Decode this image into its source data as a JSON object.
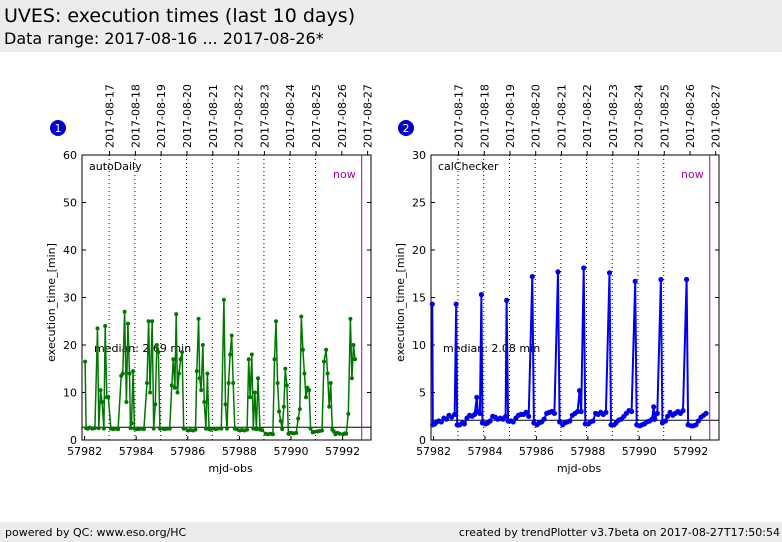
{
  "header": {
    "title": "UVES: execution times (last 10 days)",
    "subtitle": "Data range: 2017-08-16 ... 2017-08-26*"
  },
  "footer": {
    "left": "powered by QC: www.eso.org/HC",
    "right": "created by trendPlotter v3.7beta on 2017-08-27T17:50:54"
  },
  "chart_data": [
    {
      "type": "line",
      "badge": "1",
      "label": "autoDaily",
      "color": "#007700",
      "xlabel": "mjd-obs",
      "ylabel": "execution_time_[min]",
      "xlim": [
        57981.9,
        57993.1
      ],
      "ylim": [
        0,
        60
      ],
      "xticks": [
        57982,
        57984,
        57986,
        57988,
        57990,
        57992
      ],
      "yticks": [
        0,
        10,
        20,
        30,
        40,
        50,
        60
      ],
      "date_ticks": [
        "2017-08-17",
        "2017-08-18",
        "2017-08-19",
        "2017-08-20",
        "2017-08-21",
        "2017-08-22",
        "2017-08-23",
        "2017-08-24",
        "2017-08-25",
        "2017-08-26",
        "2017-08-27"
      ],
      "date_tick_mjd": [
        57982.0,
        57983.0,
        57984.0,
        57985.0,
        57986.0,
        57987.0,
        57988.0,
        57989.0,
        57990.0,
        57991.0,
        57992.0
      ],
      "day_boundaries": [
        57982.95,
        57983.95,
        57984.95,
        57985.95,
        57986.95,
        57987.95,
        57988.95,
        57989.95,
        57990.95
      ],
      "median": 2.69,
      "median_text": "median: 2.69 min",
      "now_mjd": 57992.74,
      "now_label": "now",
      "points": [
        [
          57982.02,
          16.5
        ],
        [
          57982.06,
          2.5
        ],
        [
          57982.12,
          2.4
        ],
        [
          57982.2,
          2.6
        ],
        [
          57982.3,
          2.4
        ],
        [
          57982.4,
          2.5
        ],
        [
          57982.5,
          23.5
        ],
        [
          57982.55,
          2.5
        ],
        [
          57982.62,
          10.5
        ],
        [
          57982.68,
          8.0
        ],
        [
          57982.75,
          2.4
        ],
        [
          57982.8,
          24.0
        ],
        [
          57982.86,
          9.0
        ],
        [
          57982.92,
          9.0
        ],
        [
          57983.02,
          2.4
        ],
        [
          57983.1,
          2.3
        ],
        [
          57983.2,
          2.4
        ],
        [
          57983.3,
          2.3
        ],
        [
          57983.42,
          13.5
        ],
        [
          57983.48,
          14.0
        ],
        [
          57983.55,
          27.0
        ],
        [
          57983.62,
          8.0
        ],
        [
          57983.68,
          24.5
        ],
        [
          57983.74,
          14.0
        ],
        [
          57983.78,
          2.5
        ],
        [
          57983.82,
          3.5
        ],
        [
          57983.88,
          14.5
        ],
        [
          57983.93,
          2.4
        ],
        [
          57984.02,
          2.3
        ],
        [
          57984.1,
          2.3
        ],
        [
          57984.2,
          2.4
        ],
        [
          57984.3,
          2.3
        ],
        [
          57984.42,
          12.0
        ],
        [
          57984.48,
          25.0
        ],
        [
          57984.54,
          10.0
        ],
        [
          57984.62,
          25.0
        ],
        [
          57984.68,
          2.4
        ],
        [
          57984.74,
          7.5
        ],
        [
          57984.8,
          20.0
        ],
        [
          57984.86,
          18.5
        ],
        [
          57984.92,
          2.4
        ],
        [
          57985.02,
          2.4
        ],
        [
          57985.1,
          2.3
        ],
        [
          57985.2,
          2.4
        ],
        [
          57985.3,
          2.4
        ],
        [
          57985.38,
          11.5
        ],
        [
          57985.44,
          17.0
        ],
        [
          57985.5,
          11.0
        ],
        [
          57985.55,
          26.5
        ],
        [
          57985.6,
          10.0
        ],
        [
          57985.66,
          14.0
        ],
        [
          57985.72,
          17.0
        ],
        [
          57985.78,
          18.5
        ],
        [
          57985.84,
          2.4
        ],
        [
          57985.9,
          2.4
        ],
        [
          57986.02,
          2.0
        ],
        [
          57986.1,
          2.1
        ],
        [
          57986.2,
          2.0
        ],
        [
          57986.3,
          2.2
        ],
        [
          57986.35,
          14.5
        ],
        [
          57986.42,
          25.5
        ],
        [
          57986.46,
          13.0
        ],
        [
          57986.52,
          10.5
        ],
        [
          57986.58,
          20.0
        ],
        [
          57986.64,
          8.0
        ],
        [
          57986.7,
          2.4
        ],
        [
          57986.76,
          14.0
        ],
        [
          57986.82,
          2.3
        ],
        [
          57986.88,
          2.2
        ],
        [
          57987.02,
          2.4
        ],
        [
          57987.08,
          2.3
        ],
        [
          57987.16,
          2.4
        ],
        [
          57987.3,
          2.4
        ],
        [
          57987.4,
          29.5
        ],
        [
          57987.46,
          7.5
        ],
        [
          57987.52,
          2.4
        ],
        [
          57987.58,
          12.0
        ],
        [
          57987.64,
          18.0
        ],
        [
          57987.7,
          22.0
        ],
        [
          57987.76,
          12.0
        ],
        [
          57987.82,
          2.4
        ],
        [
          57987.9,
          2.3
        ],
        [
          57988.02,
          2.0
        ],
        [
          57988.1,
          2.1
        ],
        [
          57988.2,
          2.0
        ],
        [
          57988.3,
          2.2
        ],
        [
          57988.36,
          17.0
        ],
        [
          57988.42,
          9.0
        ],
        [
          57988.48,
          18.0
        ],
        [
          57988.54,
          2.4
        ],
        [
          57988.6,
          10.0
        ],
        [
          57988.66,
          2.3
        ],
        [
          57988.72,
          13.0
        ],
        [
          57988.8,
          2.2
        ],
        [
          57988.88,
          2.1
        ],
        [
          57989.02,
          1.3
        ],
        [
          57989.1,
          1.2
        ],
        [
          57989.2,
          1.3
        ],
        [
          57989.3,
          1.2
        ],
        [
          57989.36,
          17.0
        ],
        [
          57989.42,
          25.0
        ],
        [
          57989.48,
          12.0
        ],
        [
          57989.54,
          6.0
        ],
        [
          57989.6,
          4.0
        ],
        [
          57989.66,
          2.3
        ],
        [
          57989.72,
          7.0
        ],
        [
          57989.78,
          15.0
        ],
        [
          57989.84,
          11.5
        ],
        [
          57989.9,
          1.3
        ],
        [
          57990.02,
          1.5
        ],
        [
          57990.1,
          1.4
        ],
        [
          57990.2,
          1.5
        ],
        [
          57990.28,
          4.5
        ],
        [
          57990.34,
          6.5
        ],
        [
          57990.4,
          26.0
        ],
        [
          57990.46,
          19.0
        ],
        [
          57990.52,
          14.0
        ],
        [
          57990.58,
          9.0
        ],
        [
          57990.64,
          11.0
        ],
        [
          57990.7,
          10.5
        ],
        [
          57990.76,
          2.4
        ],
        [
          57990.84,
          1.6
        ],
        [
          57990.9,
          1.7
        ],
        [
          57991.02,
          1.8
        ],
        [
          57991.1,
          1.9
        ],
        [
          57991.2,
          2.0
        ],
        [
          57991.28,
          16.5
        ],
        [
          57991.36,
          19.0
        ],
        [
          57991.42,
          14.0
        ],
        [
          57991.48,
          7.0
        ],
        [
          57991.54,
          12.0
        ],
        [
          57991.6,
          2.2
        ],
        [
          57991.66,
          1.8
        ],
        [
          57991.72,
          1.2
        ],
        [
          57991.8,
          1.5
        ],
        [
          57991.88,
          1.3
        ],
        [
          57992.02,
          1.2
        ],
        [
          57992.08,
          1.4
        ],
        [
          57992.14,
          1.3
        ],
        [
          57992.22,
          5.5
        ],
        [
          57992.3,
          25.5
        ],
        [
          57992.36,
          13.0
        ],
        [
          57992.42,
          20.0
        ],
        [
          57992.48,
          17.0
        ]
      ]
    },
    {
      "type": "line",
      "badge": "2",
      "label": "calChecker",
      "color": "#0000ee",
      "xlabel": "mjd-obs",
      "ylabel": "execution_time_[min]",
      "xlim": [
        57981.9,
        57993.1
      ],
      "ylim": [
        0,
        30
      ],
      "xticks": [
        57982,
        57984,
        57986,
        57988,
        57990,
        57992
      ],
      "yticks": [
        0,
        5,
        10,
        15,
        20,
        25,
        30
      ],
      "date_ticks": [
        "2017-08-17",
        "2017-08-18",
        "2017-08-19",
        "2017-08-20",
        "2017-08-21",
        "2017-08-22",
        "2017-08-23",
        "2017-08-24",
        "2017-08-25",
        "2017-08-26",
        "2017-08-27"
      ],
      "date_tick_mjd": [
        57982.0,
        57983.0,
        57984.0,
        57985.0,
        57986.0,
        57987.0,
        57988.0,
        57989.0,
        57990.0,
        57991.0,
        57992.0
      ],
      "day_boundaries": [
        57982.95,
        57983.95,
        57984.95,
        57985.95,
        57986.95,
        57987.95,
        57988.95,
        57989.95,
        57990.95
      ],
      "median": 2.08,
      "median_text": "median: 2.08 min",
      "now_mjd": 57992.74,
      "now_label": "now",
      "points": [
        [
          57981.95,
          14.3
        ],
        [
          57981.97,
          1.6
        ],
        [
          57982.05,
          1.7
        ],
        [
          57982.12,
          1.9
        ],
        [
          57982.2,
          2.0
        ],
        [
          57982.3,
          1.9
        ],
        [
          57982.4,
          2.3
        ],
        [
          57982.5,
          2.2
        ],
        [
          57982.6,
          2.6
        ],
        [
          57982.7,
          2.4
        ],
        [
          57982.82,
          2.7
        ],
        [
          57982.88,
          14.3
        ],
        [
          57982.92,
          1.6
        ],
        [
          57983.02,
          1.6
        ],
        [
          57983.12,
          1.8
        ],
        [
          57983.2,
          1.7
        ],
        [
          57983.3,
          2.3
        ],
        [
          57983.4,
          2.6
        ],
        [
          57983.5,
          2.5
        ],
        [
          57983.6,
          2.7
        ],
        [
          57983.68,
          4.5
        ],
        [
          57983.72,
          3.0
        ],
        [
          57983.8,
          2.8
        ],
        [
          57983.86,
          15.3
        ],
        [
          57983.9,
          1.8
        ],
        [
          57984.02,
          1.7
        ],
        [
          57984.1,
          1.8
        ],
        [
          57984.2,
          2.0
        ],
        [
          57984.3,
          2.5
        ],
        [
          57984.4,
          2.4
        ],
        [
          57984.5,
          2.2
        ],
        [
          57984.6,
          2.3
        ],
        [
          57984.7,
          2.2
        ],
        [
          57984.8,
          2.5
        ],
        [
          57984.84,
          14.7
        ],
        [
          57984.9,
          2.0
        ],
        [
          57985.02,
          2.0
        ],
        [
          57985.1,
          1.9
        ],
        [
          57985.2,
          2.3
        ],
        [
          57985.3,
          2.6
        ],
        [
          57985.4,
          2.7
        ],
        [
          57985.5,
          2.7
        ],
        [
          57985.6,
          2.9
        ],
        [
          57985.7,
          2.5
        ],
        [
          57985.84,
          17.2
        ],
        [
          57985.9,
          1.8
        ],
        [
          57986.02,
          1.6
        ],
        [
          57986.1,
          1.8
        ],
        [
          57986.2,
          1.9
        ],
        [
          57986.3,
          2.2
        ],
        [
          57986.4,
          2.8
        ],
        [
          57986.5,
          2.9
        ],
        [
          57986.6,
          3.0
        ],
        [
          57986.7,
          2.8
        ],
        [
          57986.84,
          17.7
        ],
        [
          57986.9,
          1.9
        ],
        [
          57987.02,
          1.6
        ],
        [
          57987.1,
          1.8
        ],
        [
          57987.2,
          1.9
        ],
        [
          57987.3,
          2.0
        ],
        [
          57987.4,
          2.6
        ],
        [
          57987.5,
          2.8
        ],
        [
          57987.6,
          3.0
        ],
        [
          57987.68,
          5.2
        ],
        [
          57987.74,
          3.0
        ],
        [
          57987.84,
          18.1
        ],
        [
          57987.9,
          1.7
        ],
        [
          57988.02,
          1.7
        ],
        [
          57988.1,
          1.9
        ],
        [
          57988.2,
          2.0
        ],
        [
          57988.3,
          2.8
        ],
        [
          57988.4,
          2.7
        ],
        [
          57988.5,
          2.9
        ],
        [
          57988.6,
          2.7
        ],
        [
          57988.7,
          2.9
        ],
        [
          57988.84,
          17.6
        ],
        [
          57988.9,
          1.6
        ],
        [
          57989.02,
          1.6
        ],
        [
          57989.1,
          1.8
        ],
        [
          57989.2,
          2.1
        ],
        [
          57989.3,
          2.2
        ],
        [
          57989.4,
          2.5
        ],
        [
          57989.5,
          2.8
        ],
        [
          57989.6,
          3.1
        ],
        [
          57989.7,
          3.0
        ],
        [
          57989.84,
          16.7
        ],
        [
          57989.9,
          1.6
        ],
        [
          57990.02,
          1.5
        ],
        [
          57990.1,
          1.6
        ],
        [
          57990.2,
          1.7
        ],
        [
          57990.3,
          1.9
        ],
        [
          57990.4,
          2.0
        ],
        [
          57990.5,
          2.2
        ],
        [
          57990.56,
          3.5
        ],
        [
          57990.6,
          2.2
        ],
        [
          57990.7,
          2.8
        ],
        [
          57990.84,
          16.9
        ],
        [
          57990.9,
          1.8
        ],
        [
          57991.02,
          2.0
        ],
        [
          57991.1,
          2.5
        ],
        [
          57991.2,
          2.9
        ],
        [
          57991.3,
          2.6
        ],
        [
          57991.4,
          2.8
        ],
        [
          57991.5,
          3.0
        ],
        [
          57991.6,
          2.8
        ],
        [
          57991.7,
          3.1
        ],
        [
          57991.84,
          16.9
        ],
        [
          57991.9,
          1.6
        ],
        [
          57992.02,
          1.5
        ],
        [
          57992.1,
          1.5
        ],
        [
          57992.2,
          1.6
        ],
        [
          57992.3,
          2.0
        ],
        [
          57992.4,
          2.4
        ],
        [
          57992.5,
          2.6
        ],
        [
          57992.6,
          2.8
        ]
      ]
    }
  ]
}
